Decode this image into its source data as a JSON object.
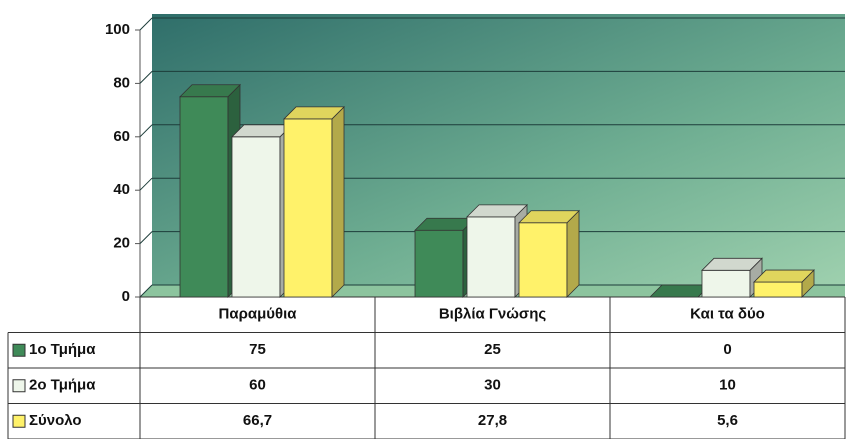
{
  "chart_data": {
    "type": "bar3d",
    "categories": [
      "Παραμύθια",
      "Βιβλία Γνώσης",
      "Και τα δύο"
    ],
    "series": [
      {
        "name": "1ο Τμήμα",
        "color": "#3f8a58",
        "values": [
          75,
          25,
          0
        ]
      },
      {
        "name": "2ο Τμήμα",
        "color": "#eef6ea",
        "values": [
          60,
          30,
          10
        ]
      },
      {
        "name": "Σύνολο",
        "color": "#fff26a",
        "values": [
          66.7,
          27.8,
          5.6
        ],
        "value_labels": [
          "66,7",
          "27,8",
          "5,6"
        ]
      }
    ],
    "ylim": [
      0,
      100
    ],
    "yticks": [
      0,
      20,
      40,
      60,
      80,
      100
    ],
    "grid": true
  }
}
